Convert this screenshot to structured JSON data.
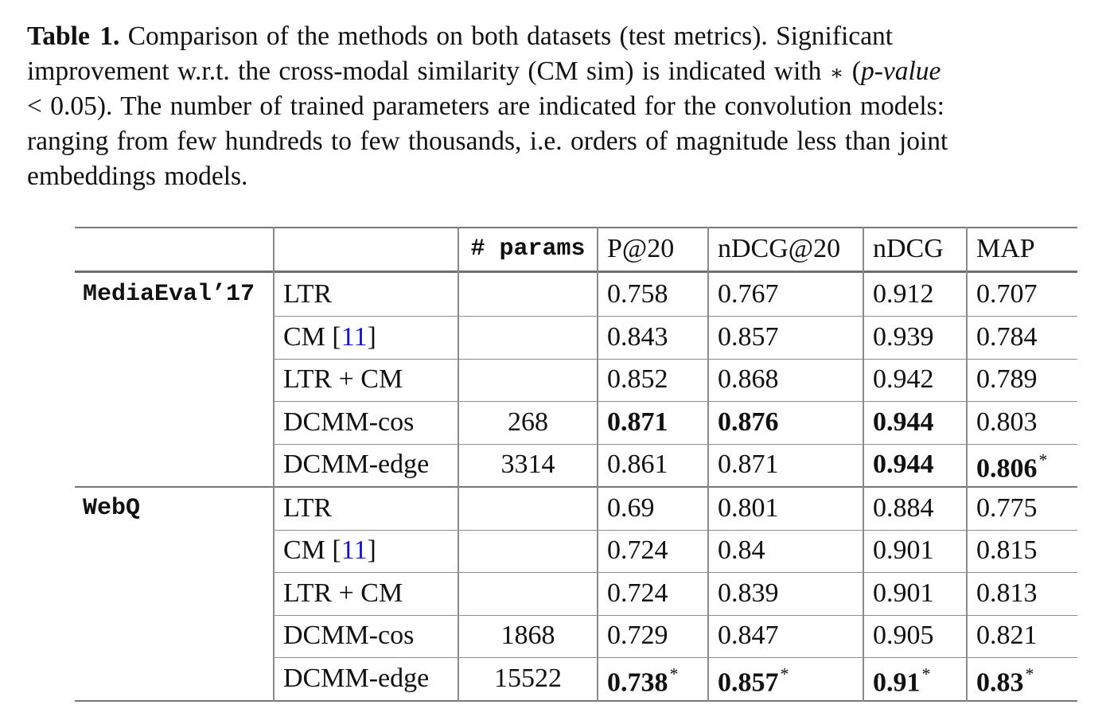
{
  "caption": {
    "label": "Table 1.",
    "line1": "Comparison of the methods on both datasets (test metrics). Significant",
    "line2_a": "improvement w.r.t. the cross-modal similarity (CM sim) is indicated with",
    "line2_symbol": "∗",
    "line2_b": "(p-value",
    "line3": "< 0.05). The number of trained parameters are indicated for the convolution models:",
    "line4": "ranging from few hundreds to few thousands, i.e. orders of magnitude less than joint",
    "line5": "embeddings models."
  },
  "table": {
    "headers": [
      "",
      "",
      "# params",
      "P@20",
      "nDCG@20",
      "nDCG",
      "MAP"
    ],
    "groups": [
      {
        "dataset": "MediaEval’17",
        "rows": [
          {
            "method": "LTR",
            "ref": "",
            "params": "",
            "p20": "0.758",
            "ndcg20": "0.767",
            "ndcg": "0.912",
            "map": "0.707"
          },
          {
            "method": "CM [",
            "ref": "11",
            "ref_close": "]",
            "params": "",
            "p20": "0.843",
            "ndcg20": "0.857",
            "ndcg": "0.939",
            "map": "0.784"
          },
          {
            "method": "LTR + CM",
            "ref": "",
            "params": "",
            "p20": "0.852",
            "ndcg20": "0.868",
            "ndcg": "0.942",
            "map": "0.789"
          },
          {
            "method": "DCMM-cos",
            "ref": "",
            "params": "268",
            "p20": "0.871",
            "ndcg20": "0.876",
            "ndcg": "0.944",
            "map": "0.803"
          },
          {
            "method": "DCMM-edge",
            "ref": "",
            "params": "3314",
            "p20": "0.861",
            "ndcg20": "0.871",
            "ndcg": "0.944",
            "map": "0.806",
            "map_star": "*"
          }
        ]
      },
      {
        "dataset": "WebQ",
        "rows": [
          {
            "method": "LTR",
            "ref": "",
            "params": "",
            "p20": "0.69",
            "ndcg20": "0.801",
            "ndcg": "0.884",
            "map": "0.775"
          },
          {
            "method": "CM [",
            "ref": "11",
            "ref_close": "]",
            "params": "",
            "p20": "0.724",
            "ndcg20": "0.84",
            "ndcg": "0.901",
            "map": "0.815"
          },
          {
            "method": "LTR + CM",
            "ref": "",
            "params": "",
            "p20": "0.724",
            "ndcg20": "0.839",
            "ndcg": "0.901",
            "map": "0.813"
          },
          {
            "method": "DCMM-cos",
            "ref": "",
            "params": "1868",
            "p20": "0.729",
            "ndcg20": "0.847",
            "ndcg": "0.905",
            "map": "0.821"
          },
          {
            "method": "DCMM-edge",
            "ref": "",
            "params": "15522",
            "p20": "0.738",
            "p20_star": "*",
            "ndcg20": "0.857",
            "ndcg20_star": "*",
            "ndcg": "0.91",
            "ndcg_star": "*",
            "map": "0.83",
            "map_star": "*"
          }
        ]
      }
    ]
  },
  "colors": {
    "text": "#111111",
    "link": "#1414c8",
    "rules": "#777777"
  }
}
